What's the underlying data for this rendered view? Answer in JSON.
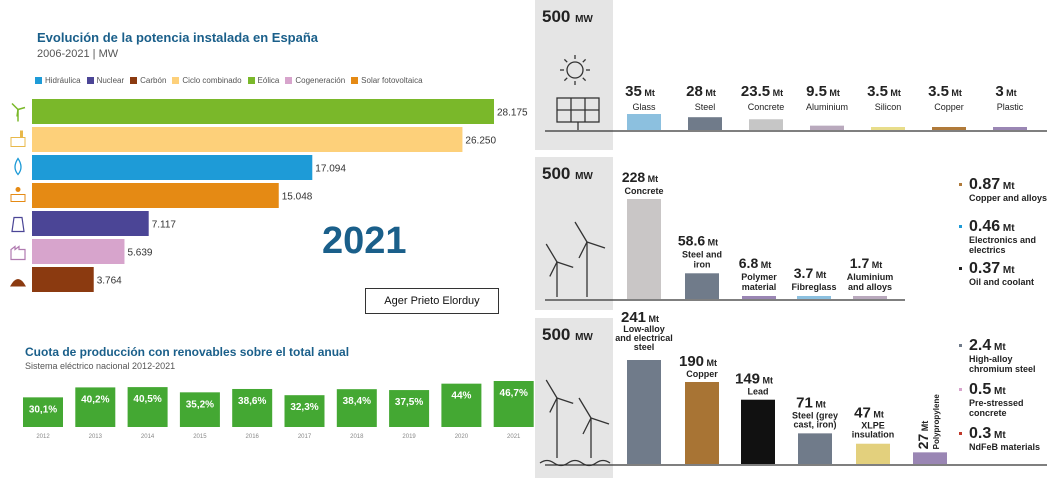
{
  "left": {
    "title": "Evolución de la potencia instalada en España",
    "subtitle": "2006-2021 | MW",
    "year_label": "2021",
    "author": "Ager Prieto Elorduy",
    "legend": [
      {
        "label": "Hidráulica",
        "color": "#1e9bd7"
      },
      {
        "label": "Nuclear",
        "color": "#4b4596"
      },
      {
        "label": "Carbón",
        "color": "#8b3a10"
      },
      {
        "label": "Ciclo combinado",
        "color": "#fdd07a"
      },
      {
        "label": "Eólica",
        "color": "#7ab82a"
      },
      {
        "label": "Cogeneración",
        "color": "#d7a4cc"
      },
      {
        "label": "Solar fotovoltaica",
        "color": "#e58a14"
      }
    ],
    "icons": [
      "wind-turbine-icon",
      "gas-plant-icon",
      "water-drop-icon",
      "solar-panel-icon",
      "nuclear-plant-icon",
      "factory-icon",
      "coal-pile-icon"
    ]
  },
  "quota": {
    "title": "Cuota de producción con renovables sobre el total anual",
    "subtitle": "Sistema eléctrico nacional 2012-2021",
    "color": "#44a833"
  },
  "panels": [
    {
      "capacity": "500",
      "unit": "MW",
      "icon": "solar-panel-icon",
      "unit_label": "Mt",
      "items": [
        {
          "value": "35",
          "material": "Glass",
          "color": "#8cc0df"
        },
        {
          "value": "28",
          "material": "Steel",
          "color": "#707b8a"
        },
        {
          "value": "23.5",
          "material": "Concrete",
          "color": "#c6c6c6"
        },
        {
          "value": "9.5",
          "material": "Aluminium",
          "color": "#b9a9bd"
        },
        {
          "value": "3.5",
          "material": "Silicon",
          "color": "#e8dd8a"
        },
        {
          "value": "3.5",
          "material": "Copper",
          "color": "#b07a3a"
        },
        {
          "value": "3",
          "material": "Plastic",
          "color": "#9a86b4"
        }
      ]
    },
    {
      "capacity": "500",
      "unit": "MW",
      "icon": "wind-turbine-icon",
      "unit_label": "Mt",
      "items": [
        {
          "value": "228",
          "material": "Concrete",
          "color": "#c9c6c6"
        },
        {
          "value": "58.6",
          "material": "Steel and iron",
          "color": "#707b8a"
        },
        {
          "value": "6.8",
          "material": "Polymer material",
          "color": "#9a86b4"
        },
        {
          "value": "3.7",
          "material": "Fibreglass",
          "color": "#8cc0df"
        },
        {
          "value": "1.7",
          "material": "Aluminium and alloys",
          "color": "#b9a9bd"
        }
      ],
      "side": [
        {
          "value": "0.87",
          "material": "Copper and alloys",
          "color": "#b07a3a"
        },
        {
          "value": "0.46",
          "material": "Electronics and electrics",
          "color": "#1e9bd7"
        },
        {
          "value": "0.37",
          "material": "Oil and coolant",
          "color": "#222222"
        }
      ]
    },
    {
      "capacity": "500",
      "unit": "MW",
      "icon": "offshore-wind-icon",
      "unit_label": "Mt",
      "items": [
        {
          "value": "241",
          "material": "Low-alloy and electrical steel",
          "color": "#707b8a"
        },
        {
          "value": "190",
          "material": "Copper",
          "color": "#a87434"
        },
        {
          "value": "149",
          "material": "Lead",
          "color": "#111111"
        },
        {
          "value": "71",
          "material": "Steel (grey cast, iron)",
          "color": "#707b8a"
        },
        {
          "value": "47",
          "material": "XLPE insulation",
          "color": "#e3d07d"
        },
        {
          "value": "27",
          "material": "Polypropylene",
          "color": "#9a86b4"
        }
      ],
      "side": [
        {
          "value": "2.4",
          "material": "High-alloy chromium steel",
          "color": "#707b8a"
        },
        {
          "value": "0.5",
          "material": "Pre-stressed concrete",
          "color": "#d7a4cc"
        },
        {
          "value": "0.3",
          "material": "NdFeB materials",
          "color": "#c0392b"
        }
      ]
    }
  ],
  "chart_data": [
    {
      "type": "bar",
      "orientation": "horizontal",
      "title": "Evolución de la potencia instalada en España",
      "subtitle": "2006-2021 | MW",
      "categories": [
        "Eólica",
        "Ciclo combinado",
        "Hidráulica",
        "Solar fotovoltaica",
        "Nuclear",
        "Cogeneración",
        "Carbón"
      ],
      "values": [
        28175,
        26250,
        17094,
        15048,
        7117,
        5639,
        3764
      ],
      "value_labels": [
        "28.175",
        "26.250",
        "17.094",
        "15.048",
        "7.117",
        "5.639",
        "3.764"
      ],
      "colors": [
        "#7ab82a",
        "#fdd07a",
        "#1e9bd7",
        "#e58a14",
        "#4b4596",
        "#d7a4cc",
        "#8b3a10"
      ],
      "xlim": [
        0,
        28175
      ],
      "year": "2021"
    },
    {
      "type": "bar",
      "title": "Cuota de producción con renovables sobre el total anual",
      "subtitle": "Sistema eléctrico nacional 2012-2021",
      "categories": [
        "2012",
        "2013",
        "2014",
        "2015",
        "2016",
        "2017",
        "2018",
        "2019",
        "2020",
        "2021"
      ],
      "values": [
        30.1,
        40.2,
        40.5,
        35.2,
        38.6,
        32.3,
        38.4,
        37.5,
        44,
        46.7
      ],
      "value_labels": [
        "30,1%",
        "40,2%",
        "40,5%",
        "35,2%",
        "38,6%",
        "32,3%",
        "38,4%",
        "37,5%",
        "44%",
        "46,7%"
      ],
      "ylim": [
        0,
        46.7
      ]
    },
    {
      "type": "bar",
      "title": "",
      "categories": [
        "Glass",
        "Steel",
        "Concrete",
        "Aluminium",
        "Silicon",
        "Copper",
        "Plastic"
      ],
      "values": [
        35,
        28,
        23.5,
        9.5,
        3.5,
        3.5,
        3
      ],
      "unit": "Mt"
    },
    {
      "type": "bar",
      "title": "",
      "categories": [
        "Concrete",
        "Steel and iron",
        "Polymer material",
        "Fibreglass",
        "Aluminium and alloys"
      ],
      "values": [
        228,
        58.6,
        6.8,
        3.7,
        1.7
      ],
      "unit": "Mt"
    },
    {
      "type": "bar",
      "title": "",
      "categories": [
        "Low-alloy and electrical steel",
        "Copper",
        "Lead",
        "Steel (grey cast, iron)",
        "XLPE insulation",
        "Polypropylene"
      ],
      "values": [
        241,
        190,
        149,
        71,
        47,
        27
      ],
      "unit": "Mt"
    }
  ]
}
